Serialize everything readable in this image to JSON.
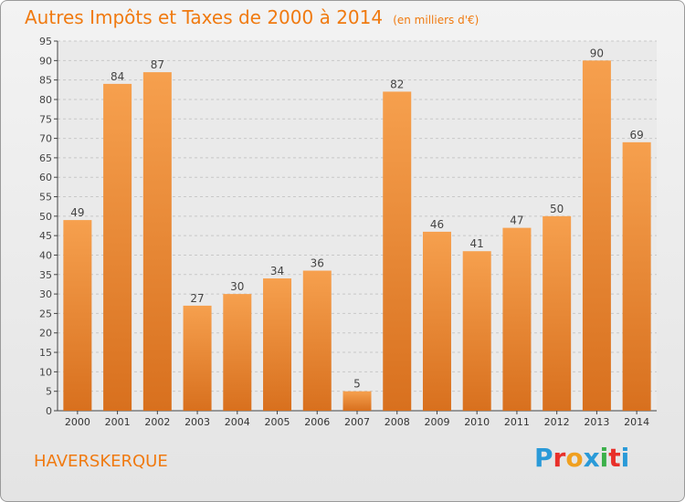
{
  "title": "Autres Impôts et Taxes de 2000 à 2014",
  "unit_label": "(en milliers d'€)",
  "commune": "HAVERSKERQUE",
  "logo": {
    "letters": [
      "P",
      "r",
      "o",
      "x",
      "i",
      "t",
      "i"
    ],
    "colors": [
      "#2a9ad8",
      "#e8302a",
      "#f0a020",
      "#2a9ad8",
      "#3cb04a",
      "#e8302a",
      "#2a9ad8"
    ]
  },
  "colors": {
    "accent": "#f07a10",
    "bar_light": "#f6a04e",
    "bar_dark": "#d8701e"
  },
  "chart_data": {
    "type": "bar",
    "categories": [
      "2000",
      "2001",
      "2002",
      "2003",
      "2004",
      "2005",
      "2006",
      "2007",
      "2008",
      "2009",
      "2010",
      "2011",
      "2012",
      "2013",
      "2014"
    ],
    "values": [
      49,
      84,
      87,
      27,
      30,
      34,
      36,
      5,
      82,
      46,
      41,
      47,
      50,
      90,
      69
    ],
    "ylim": [
      0,
      95
    ],
    "yticks": [
      0,
      5,
      10,
      15,
      20,
      25,
      30,
      35,
      40,
      45,
      50,
      55,
      60,
      65,
      70,
      75,
      80,
      85,
      90,
      95
    ],
    "grid": true,
    "legend": "none"
  }
}
